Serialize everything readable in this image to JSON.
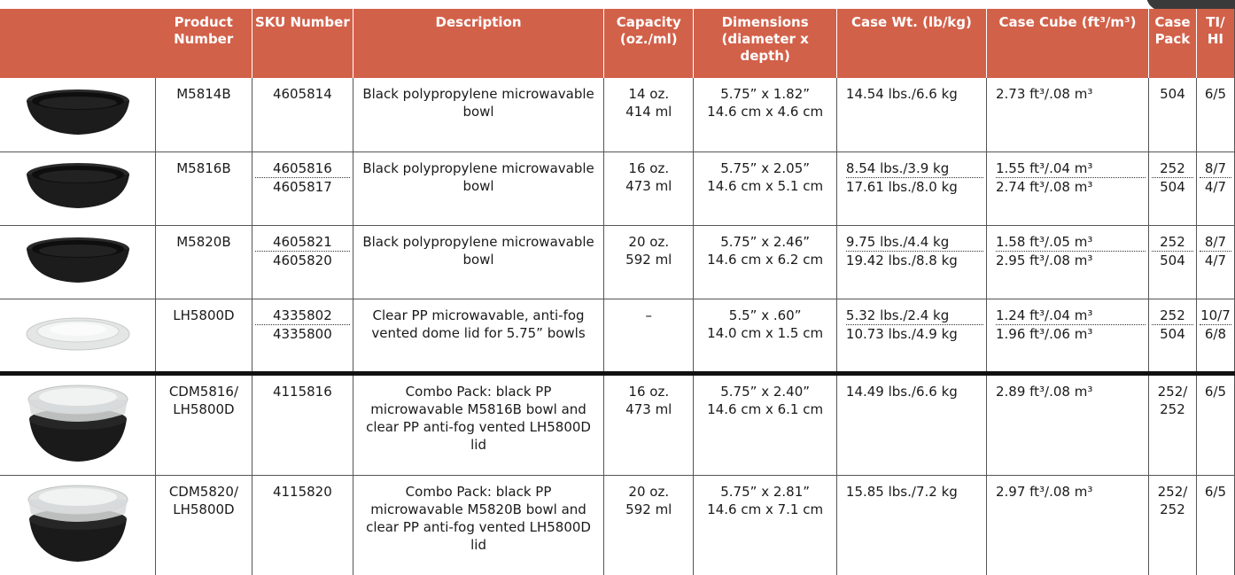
{
  "headers": {
    "product_number": "Product Number",
    "sku_number": "SKU Number",
    "description": "Description",
    "capacity": "Capacity (oz./ml)",
    "dimensions": "Dimensions (diameter x depth)",
    "case_wt": "Case Wt. (lb/kg)",
    "case_cube": "Case Cube (ft³/m³)",
    "case_pack": "Case Pack",
    "ti_hi": "TI/ HI"
  },
  "rows": [
    {
      "image": "black-bowl-icon",
      "product": "M5814B",
      "sku": [
        "4605814"
      ],
      "description": "Black polypropylene microwavable bowl",
      "capacity": [
        "14 oz.",
        "414 ml"
      ],
      "dimensions": [
        "5.75” x 1.82”",
        "14.6 cm x 4.6 cm"
      ],
      "case_wt": [
        "14.54 lbs./6.6 kg"
      ],
      "case_cube": [
        "2.73 ft³/.08 m³"
      ],
      "case_pack": [
        "504"
      ],
      "ti_hi": [
        "6/5"
      ]
    },
    {
      "image": "black-bowl-icon",
      "product": "M5816B",
      "sku": [
        "4605816",
        "4605817"
      ],
      "description": "Black polypropylene microwavable bowl",
      "capacity": [
        "16 oz.",
        "473 ml"
      ],
      "dimensions": [
        "5.75” x 2.05”",
        "14.6 cm x 5.1 cm"
      ],
      "case_wt": [
        "8.54 lbs./3.9 kg",
        "17.61 lbs./8.0 kg"
      ],
      "case_cube": [
        "1.55 ft³/.04 m³",
        "2.74 ft³/.08 m³"
      ],
      "case_pack": [
        "252",
        "504"
      ],
      "ti_hi": [
        "8/7",
        "4/7"
      ]
    },
    {
      "image": "black-bowl-icon",
      "product": "M5820B",
      "sku": [
        "4605821",
        "4605820"
      ],
      "description": "Black polypropylene microwavable bowl",
      "capacity": [
        "20 oz.",
        "592 ml"
      ],
      "dimensions": [
        "5.75” x 2.46”",
        "14.6 cm x 6.2 cm"
      ],
      "case_wt": [
        "9.75 lbs./4.4 kg",
        "19.42 lbs./8.8 kg"
      ],
      "case_cube": [
        "1.58 ft³/.05 m³",
        "2.95 ft³/.08 m³"
      ],
      "case_pack": [
        "252",
        "504"
      ],
      "ti_hi": [
        "8/7",
        "4/7"
      ]
    },
    {
      "image": "clear-lid-icon",
      "product": "LH5800D",
      "sku": [
        "4335802",
        "4335800"
      ],
      "description": "Clear PP microwavable, anti-fog vented dome lid for 5.75” bowls",
      "capacity": [
        "–"
      ],
      "dimensions": [
        "5.5” x .60”",
        "14.0 cm x 1.5 cm"
      ],
      "case_wt": [
        "5.32 lbs./2.4 kg",
        "10.73 lbs./4.9 kg"
      ],
      "case_cube": [
        "1.24 ft³/.04 m³",
        "1.96 ft³/.06 m³"
      ],
      "case_pack": [
        "252",
        "504"
      ],
      "ti_hi": [
        "10/7",
        "6/8"
      ]
    },
    {
      "image": "combo-bowl-lid-icon",
      "product": "CDM5816/ LH5800D",
      "sku": [
        "4115816"
      ],
      "description": "Combo Pack: black PP microwavable M5816B bowl and clear PP anti-fog vented LH5800D lid",
      "capacity": [
        "16 oz.",
        "473 ml"
      ],
      "dimensions": [
        "5.75” x 2.40”",
        "14.6 cm x 6.1 cm"
      ],
      "case_wt": [
        "14.49 lbs./6.6 kg"
      ],
      "case_cube": [
        "2.89 ft³/.08 m³"
      ],
      "case_pack": [
        "252/ 252"
      ],
      "ti_hi": [
        "6/5"
      ]
    },
    {
      "image": "combo-bowl-lid-icon",
      "product": "CDM5820/ LH5800D",
      "sku": [
        "4115820"
      ],
      "description": "Combo Pack: black PP microwavable M5820B bowl and clear PP anti-fog vented LH5800D lid",
      "capacity": [
        "20 oz.",
        "592 ml"
      ],
      "dimensions": [
        "5.75” x 2.81”",
        "14.6 cm x 7.1 cm"
      ],
      "case_wt": [
        "15.85 lbs./7.2 kg"
      ],
      "case_cube": [
        "2.97 ft³/.08 m³"
      ],
      "case_pack": [
        "252/ 252"
      ],
      "ti_hi": [
        "6/5"
      ]
    }
  ],
  "colors": {
    "header_bg": "#d2614a",
    "header_text": "#ffffff",
    "grid": "#555555",
    "separator": "#111111"
  }
}
